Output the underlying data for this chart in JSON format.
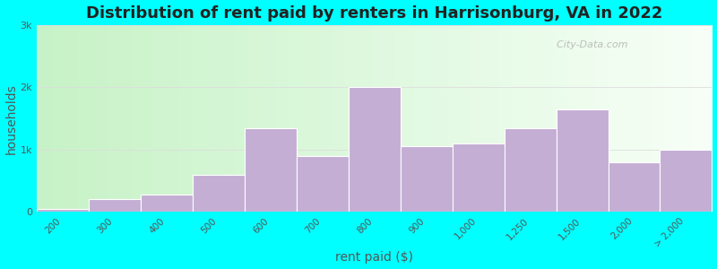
{
  "title": "Distribution of rent paid by renters in Harrisonburg, VA in 2022",
  "xlabel": "rent paid ($)",
  "ylabel": "households",
  "categories": [
    "200",
    "300",
    "400",
    "500",
    "600",
    "700",
    "800",
    "900",
    "1,000",
    "1,250",
    "1,500",
    "2,000",
    "> 2,000"
  ],
  "values": [
    50,
    200,
    280,
    600,
    1350,
    900,
    2000,
    1050,
    1100,
    1350,
    1650,
    800,
    1000
  ],
  "bar_color": "#c4aed4",
  "bar_edge_color": "#ffffff",
  "ylim": [
    0,
    3000
  ],
  "yticks": [
    0,
    1000,
    2000,
    3000
  ],
  "ytick_labels": [
    "0",
    "1k",
    "2k",
    "3k"
  ],
  "bg_color_top_left": "#c8eec8",
  "bg_color_top_right": "#eef8ee",
  "bg_color_bottom": "#f0fff0",
  "outer_bg": "#00ffff",
  "title_fontsize": 13,
  "axis_label_fontsize": 10,
  "watermark_text": "  City-Data.com"
}
